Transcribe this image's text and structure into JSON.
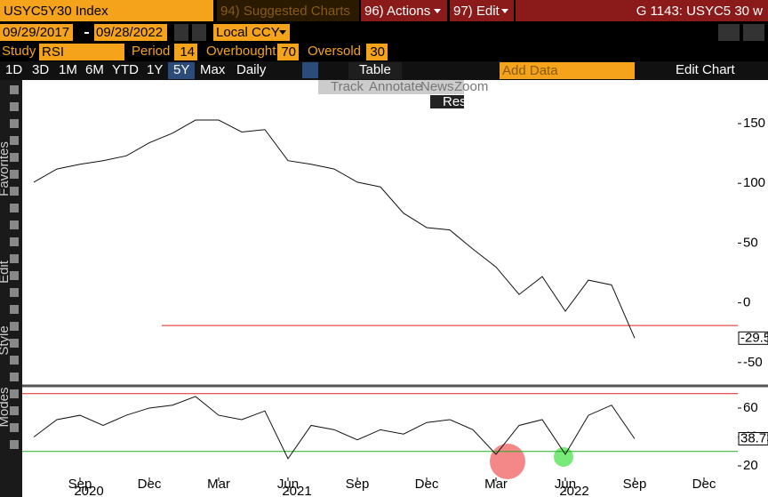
{
  "header": {
    "security": "USYC5Y30 Index",
    "suggested": "94) Suggested Charts",
    "actions": "96) Actions",
    "edit": "97) Edit",
    "page_id": "G 1143: USYC5 30 w"
  },
  "range": {
    "start": "09/29/2017",
    "end": "09/28/2022",
    "currency": "Local CCY"
  },
  "study": {
    "label": "Study",
    "name": "RSI",
    "period_label": "Period",
    "period": 14,
    "overbought_label": "Overbought",
    "overbought": 70,
    "oversold_label": "Oversold",
    "oversold": 30
  },
  "toolbar": {
    "periods": [
      "1D",
      "3D",
      "1M",
      "6M",
      "YTD",
      "1Y",
      "5Y",
      "Max"
    ],
    "selected": 6,
    "frequency": "Daily",
    "table": "Table",
    "add_data": "Add Data",
    "edit_chart": "Edit Chart"
  },
  "overlay": {
    "tools": [
      "Track",
      "Annotate",
      "News",
      "Zoom"
    ],
    "reset": "Reset"
  },
  "sidebar": [
    "Favorites",
    "Edit",
    "Style",
    "Modes"
  ],
  "chart_data": [
    {
      "type": "line",
      "color": "#111111",
      "x": [
        "2020-07",
        "2020-08",
        "2020-09",
        "2020-10",
        "2020-11",
        "2020-12",
        "2021-01",
        "2021-02",
        "2021-03",
        "2021-04",
        "2021-05",
        "2021-06",
        "2021-07",
        "2021-08",
        "2021-09",
        "2021-10",
        "2021-11",
        "2021-12",
        "2022-01",
        "2022-02",
        "2022-03",
        "2022-04",
        "2022-05",
        "2022-06",
        "2022-07",
        "2022-08",
        "2022-09"
      ],
      "values": [
        101,
        112,
        116,
        119,
        123,
        134,
        142,
        153,
        153,
        143,
        145,
        119,
        116,
        112,
        101,
        97,
        75,
        63,
        61,
        45,
        30,
        7,
        22,
        -7,
        19,
        15,
        -29.539
      ],
      "ylim": [
        -68,
        185
      ],
      "yticks": [
        -50,
        0,
        50,
        100,
        150
      ],
      "reference_line": -19,
      "reference_color": "#e02020"
    },
    {
      "type": "line",
      "color": "#111111",
      "x": [
        "2020-07",
        "2020-08",
        "2020-09",
        "2020-10",
        "2020-11",
        "2020-12",
        "2021-01",
        "2021-02",
        "2021-03",
        "2021-04",
        "2021-05",
        "2021-06",
        "2021-07",
        "2021-08",
        "2021-09",
        "2021-10",
        "2021-11",
        "2021-12",
        "2022-01",
        "2022-02",
        "2022-03",
        "2022-04",
        "2022-05",
        "2022-06",
        "2022-07",
        "2022-08",
        "2022-09"
      ],
      "values": [
        40,
        52,
        55,
        48,
        55,
        60,
        62,
        68,
        55,
        52,
        58,
        25,
        48,
        45,
        38,
        45,
        42,
        50,
        52,
        45,
        28,
        48,
        52,
        28,
        55,
        62,
        38.7377
      ],
      "ylim": [
        12,
        73.5
      ],
      "yticks": [
        20,
        40,
        60
      ],
      "xticks": [
        {
          "value": "2020-09",
          "label": "Sep"
        },
        {
          "value": "2020-12",
          "label": "Dec"
        },
        {
          "value": "2021-03",
          "label": "Mar"
        },
        {
          "value": "2021-06",
          "label": "Jun"
        },
        {
          "value": "2021-09",
          "label": "Sep"
        },
        {
          "value": "2021-12",
          "label": "Dec"
        },
        {
          "value": "2022-03",
          "label": "Mar"
        },
        {
          "value": "2022-06",
          "label": "Jun"
        },
        {
          "value": "2022-09",
          "label": "Sep"
        },
        {
          "value": "2022-12",
          "label": "Dec"
        }
      ],
      "year_labels": [
        {
          "value": "2020-09",
          "label": "2020"
        },
        {
          "value": "2021-06",
          "label": "2021"
        },
        {
          "value": "2022-06",
          "label": "2022"
        }
      ]
    }
  ]
}
